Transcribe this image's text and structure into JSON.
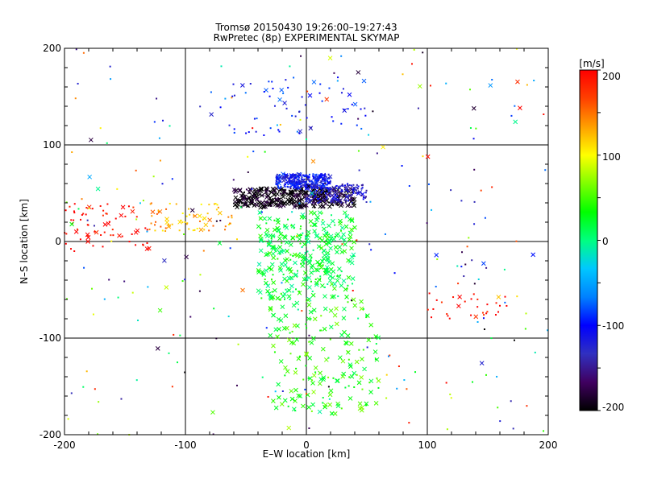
{
  "chart_data": {
    "type": "scatter",
    "title": "Tromsø 20150430 19:26:00–19:27:43",
    "subtitle": "RwPretec (8p) EXPERIMENTAL SKYMAP",
    "xlabel": "E–W location [km]",
    "ylabel": "N–S location [km]",
    "xlim": [
      -200,
      200
    ],
    "ylim": [
      -200,
      200
    ],
    "x_ticks": [
      "-200",
      "-100",
      "0",
      "100",
      "200"
    ],
    "y_ticks": [
      "-200",
      "-100",
      "0",
      "100",
      "200"
    ],
    "grid": true,
    "marker_styles": [
      "dot",
      "x"
    ],
    "colorbar": {
      "label": "[m/s]",
      "range": [
        -200,
        200
      ],
      "ticks": [
        "200",
        "100",
        "0",
        "-100",
        "-200"
      ],
      "colormap": [
        "#000000",
        "#400060",
        "#3030c0",
        "#0000ff",
        "#0080ff",
        "#00c8ff",
        "#00ff80",
        "#00ff00",
        "#80ff00",
        "#ffff00",
        "#ffa000",
        "#ff4000",
        "#ff0000"
      ]
    },
    "clusters": [
      {
        "region": "north band",
        "x": [
          -60,
          40
        ],
        "y": [
          35,
          55
        ],
        "velocity": -200,
        "marker": "x",
        "density": "very high"
      },
      {
        "region": "north band",
        "x": [
          -25,
          20
        ],
        "y": [
          55,
          70
        ],
        "velocity": -110,
        "marker": "dot",
        "density": "very high"
      },
      {
        "region": "north band",
        "x": [
          0,
          50
        ],
        "y": [
          40,
          60
        ],
        "velocity": -130,
        "marker": "dot",
        "density": "high"
      },
      {
        "region": "north upper",
        "x": [
          -80,
          50
        ],
        "y": [
          110,
          170
        ],
        "velocity": -100,
        "marker": "dot",
        "density": "medium"
      },
      {
        "region": "central column",
        "x": [
          -40,
          40
        ],
        "y": [
          -60,
          30
        ],
        "velocity": 20,
        "marker": "x",
        "density": "very high"
      },
      {
        "region": "central column",
        "x": [
          -30,
          60
        ],
        "y": [
          -180,
          -60
        ],
        "velocity": 40,
        "marker": "x",
        "density": "high"
      },
      {
        "region": "west arc",
        "x": [
          -200,
          -130
        ],
        "y": [
          -10,
          40
        ],
        "velocity": 200,
        "marker": "dot",
        "density": "medium"
      },
      {
        "region": "west arc",
        "x": [
          -130,
          -60
        ],
        "y": [
          10,
          40
        ],
        "velocity": 130,
        "marker": "dot",
        "density": "medium"
      },
      {
        "region": "east",
        "x": [
          100,
          170
        ],
        "y": [
          -80,
          -50
        ],
        "velocity": 200,
        "marker": "dot",
        "density": "low"
      },
      {
        "region": "scattered",
        "x": [
          -200,
          200
        ],
        "y": [
          -200,
          200
        ],
        "velocity": 0,
        "marker": "dot",
        "density": "sparse"
      }
    ]
  }
}
